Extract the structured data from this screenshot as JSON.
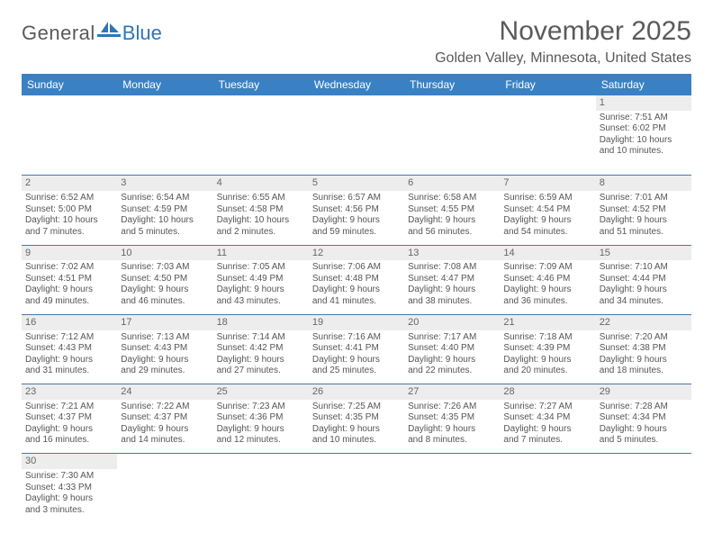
{
  "logo": {
    "text1": "General",
    "text2": "Blue"
  },
  "title": "November 2025",
  "location": "Golden Valley, Minnesota, United States",
  "colors": {
    "header_bg": "#3a81c4",
    "header_text": "#ffffff",
    "daynum_bg": "#ededed",
    "rule": "#4a76a8",
    "body_text": "#555555",
    "title_text": "#5a5a5a",
    "logo_blue": "#2f75b5"
  },
  "weekdays": [
    "Sunday",
    "Monday",
    "Tuesday",
    "Wednesday",
    "Thursday",
    "Friday",
    "Saturday"
  ],
  "weeks": [
    [
      null,
      null,
      null,
      null,
      null,
      null,
      {
        "n": "1",
        "sr": "7:51 AM",
        "ss": "6:02 PM",
        "dl": "10 hours and 10 minutes."
      }
    ],
    [
      {
        "n": "2",
        "sr": "6:52 AM",
        "ss": "5:00 PM",
        "dl": "10 hours and 7 minutes."
      },
      {
        "n": "3",
        "sr": "6:54 AM",
        "ss": "4:59 PM",
        "dl": "10 hours and 5 minutes."
      },
      {
        "n": "4",
        "sr": "6:55 AM",
        "ss": "4:58 PM",
        "dl": "10 hours and 2 minutes."
      },
      {
        "n": "5",
        "sr": "6:57 AM",
        "ss": "4:56 PM",
        "dl": "9 hours and 59 minutes."
      },
      {
        "n": "6",
        "sr": "6:58 AM",
        "ss": "4:55 PM",
        "dl": "9 hours and 56 minutes."
      },
      {
        "n": "7",
        "sr": "6:59 AM",
        "ss": "4:54 PM",
        "dl": "9 hours and 54 minutes."
      },
      {
        "n": "8",
        "sr": "7:01 AM",
        "ss": "4:52 PM",
        "dl": "9 hours and 51 minutes."
      }
    ],
    [
      {
        "n": "9",
        "sr": "7:02 AM",
        "ss": "4:51 PM",
        "dl": "9 hours and 49 minutes."
      },
      {
        "n": "10",
        "sr": "7:03 AM",
        "ss": "4:50 PM",
        "dl": "9 hours and 46 minutes."
      },
      {
        "n": "11",
        "sr": "7:05 AM",
        "ss": "4:49 PM",
        "dl": "9 hours and 43 minutes."
      },
      {
        "n": "12",
        "sr": "7:06 AM",
        "ss": "4:48 PM",
        "dl": "9 hours and 41 minutes."
      },
      {
        "n": "13",
        "sr": "7:08 AM",
        "ss": "4:47 PM",
        "dl": "9 hours and 38 minutes."
      },
      {
        "n": "14",
        "sr": "7:09 AM",
        "ss": "4:46 PM",
        "dl": "9 hours and 36 minutes."
      },
      {
        "n": "15",
        "sr": "7:10 AM",
        "ss": "4:44 PM",
        "dl": "9 hours and 34 minutes."
      }
    ],
    [
      {
        "n": "16",
        "sr": "7:12 AM",
        "ss": "4:43 PM",
        "dl": "9 hours and 31 minutes."
      },
      {
        "n": "17",
        "sr": "7:13 AM",
        "ss": "4:43 PM",
        "dl": "9 hours and 29 minutes."
      },
      {
        "n": "18",
        "sr": "7:14 AM",
        "ss": "4:42 PM",
        "dl": "9 hours and 27 minutes."
      },
      {
        "n": "19",
        "sr": "7:16 AM",
        "ss": "4:41 PM",
        "dl": "9 hours and 25 minutes."
      },
      {
        "n": "20",
        "sr": "7:17 AM",
        "ss": "4:40 PM",
        "dl": "9 hours and 22 minutes."
      },
      {
        "n": "21",
        "sr": "7:18 AM",
        "ss": "4:39 PM",
        "dl": "9 hours and 20 minutes."
      },
      {
        "n": "22",
        "sr": "7:20 AM",
        "ss": "4:38 PM",
        "dl": "9 hours and 18 minutes."
      }
    ],
    [
      {
        "n": "23",
        "sr": "7:21 AM",
        "ss": "4:37 PM",
        "dl": "9 hours and 16 minutes."
      },
      {
        "n": "24",
        "sr": "7:22 AM",
        "ss": "4:37 PM",
        "dl": "9 hours and 14 minutes."
      },
      {
        "n": "25",
        "sr": "7:23 AM",
        "ss": "4:36 PM",
        "dl": "9 hours and 12 minutes."
      },
      {
        "n": "26",
        "sr": "7:25 AM",
        "ss": "4:35 PM",
        "dl": "9 hours and 10 minutes."
      },
      {
        "n": "27",
        "sr": "7:26 AM",
        "ss": "4:35 PM",
        "dl": "9 hours and 8 minutes."
      },
      {
        "n": "28",
        "sr": "7:27 AM",
        "ss": "4:34 PM",
        "dl": "9 hours and 7 minutes."
      },
      {
        "n": "29",
        "sr": "7:28 AM",
        "ss": "4:34 PM",
        "dl": "9 hours and 5 minutes."
      }
    ],
    [
      {
        "n": "30",
        "sr": "7:30 AM",
        "ss": "4:33 PM",
        "dl": "9 hours and 3 minutes."
      },
      null,
      null,
      null,
      null,
      null,
      null
    ]
  ],
  "labels": {
    "sunrise": "Sunrise: ",
    "sunset": "Sunset: ",
    "daylight": "Daylight: "
  }
}
